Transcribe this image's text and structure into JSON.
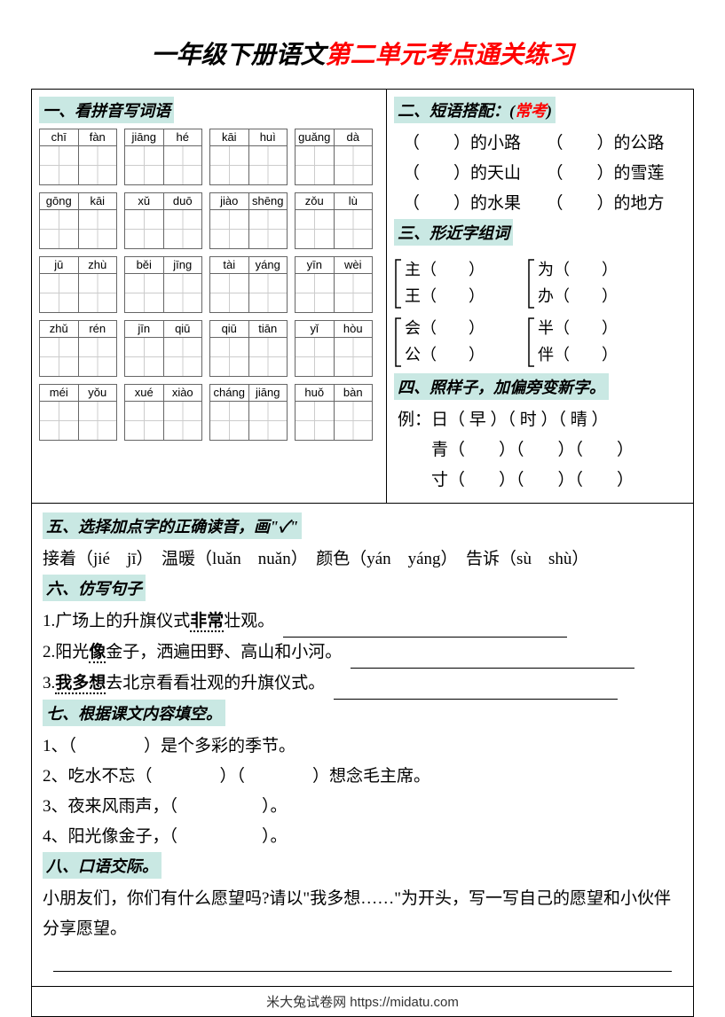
{
  "title": {
    "black": "一年级下册语文",
    "red": "第二单元考点通关练习"
  },
  "section1": {
    "header": "一、看拼音写词语",
    "blocks": [
      [
        "chī",
        "fàn"
      ],
      [
        "jiāng",
        "hé"
      ],
      [
        "kāi",
        "huì"
      ],
      [
        "guǎng",
        "dà"
      ],
      [
        "gōng",
        "kāi"
      ],
      [
        "xǔ",
        "duō"
      ],
      [
        "jiào",
        "shēng"
      ],
      [
        "zǒu",
        "lù"
      ],
      [
        "jū",
        "zhù"
      ],
      [
        "běi",
        "jīng"
      ],
      [
        "tài",
        "yáng"
      ],
      [
        "yīn",
        "wèi"
      ],
      [
        "zhǔ",
        "rén"
      ],
      [
        "jīn",
        "qiū"
      ],
      [
        "qiū",
        "tiān"
      ],
      [
        "yǐ",
        "hòu"
      ],
      [
        "méi",
        "yǒu"
      ],
      [
        "xué",
        "xiào"
      ],
      [
        "cháng",
        "jiāng"
      ],
      [
        "huǒ",
        "bàn"
      ]
    ]
  },
  "section2": {
    "header_pre": "二、短语搭配：(",
    "header_red": "常考",
    "header_post": ")",
    "lines": [
      "（　　）的小路　　（　　）的公路",
      "（　　）的天山　　（　　）的雪莲",
      "（　　）的水果　　（　　）的地方"
    ]
  },
  "section3": {
    "header": "三、形近字组词",
    "groups": [
      [
        [
          "主（　　）",
          "王（　　）"
        ],
        [
          "为（　　）",
          "办（　　）"
        ]
      ],
      [
        [
          "会（　　）",
          "公（　　）"
        ],
        [
          "半（　　）",
          "伴（　　）"
        ]
      ]
    ]
  },
  "section4": {
    "header": "四、照样子，加偏旁变新字。",
    "lines": [
      "例：日（ 早 ）（ 时 ）（ 晴 ）",
      "　　青（　　）（　　）（　　）",
      "　　寸（　　）（　　）（　　）"
    ]
  },
  "section5": {
    "header": "五、选择加点字的正确读音，画\"✓\"",
    "line": "接着（jié　jī）　温暖（luǎn　nuǎn）　颜色（yán　yáng）　告诉（sù　shù）"
  },
  "section6": {
    "header": "六、仿写句子",
    "items": [
      {
        "pre": "1.广场上的升旗仪式",
        "bold": "非常",
        "post": "壮观。"
      },
      {
        "pre": "2.阳光",
        "bold": "像",
        "post": "金子，洒遍田野、高山和小河。"
      },
      {
        "pre": "3.",
        "bold": "我多想",
        "post": "去北京看看壮观的升旗仪式。"
      }
    ]
  },
  "section7": {
    "header": "七、根据课文内容填空。",
    "lines": [
      "1、（　　　　）是个多彩的季节。",
      "2、吃水不忘（　　　　）（　　　　）想念毛主席。",
      "3、夜来风雨声，（　　　　　）。",
      "4、阳光像金子，（　　　　　）。"
    ]
  },
  "section8": {
    "header": "八、口语交际。",
    "text": "小朋友们，你们有什么愿望吗?请以\"我多想……\"为开头，写一写自己的愿望和小伙伴分享愿望。"
  },
  "footer": "米大兔试卷网 https://midatu.com",
  "colors": {
    "highlight_bg": "#c9e8e3",
    "red": "#ff0000",
    "black": "#000000",
    "grid_line": "#cccccc"
  }
}
